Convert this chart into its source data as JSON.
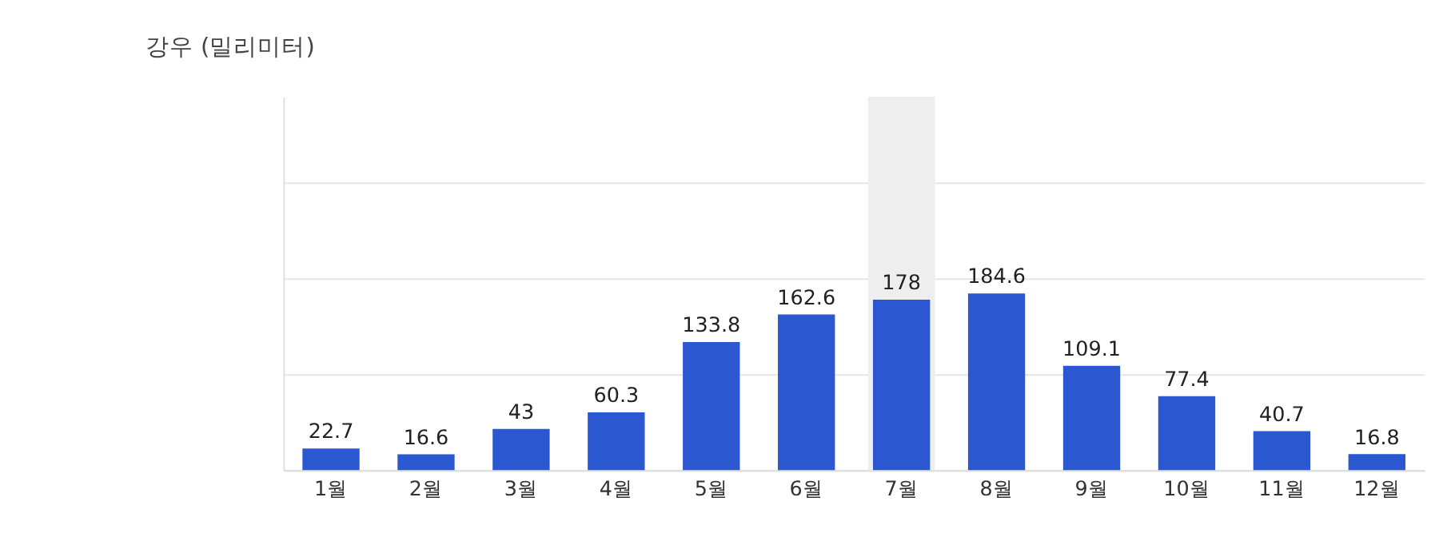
{
  "chart_data": {
    "type": "bar",
    "title": "강우 (밀리미터)",
    "categories": [
      "1월",
      "2월",
      "3월",
      "4월",
      "5월",
      "6월",
      "7월",
      "8월",
      "9월",
      "10월",
      "11월",
      "12월"
    ],
    "values": [
      22.7,
      16.6,
      43,
      60.3,
      133.8,
      162.6,
      178,
      184.6,
      109.1,
      77.4,
      40.7,
      16.8
    ],
    "color": "#2b57d1",
    "ylim": [
      0,
      390
    ],
    "tick_labels": "x",
    "grid": "y",
    "data_labels": true,
    "bands": [
      {
        "axis": "x",
        "from": "7월",
        "to": "7월",
        "color": "#eeeeee"
      }
    ]
  }
}
